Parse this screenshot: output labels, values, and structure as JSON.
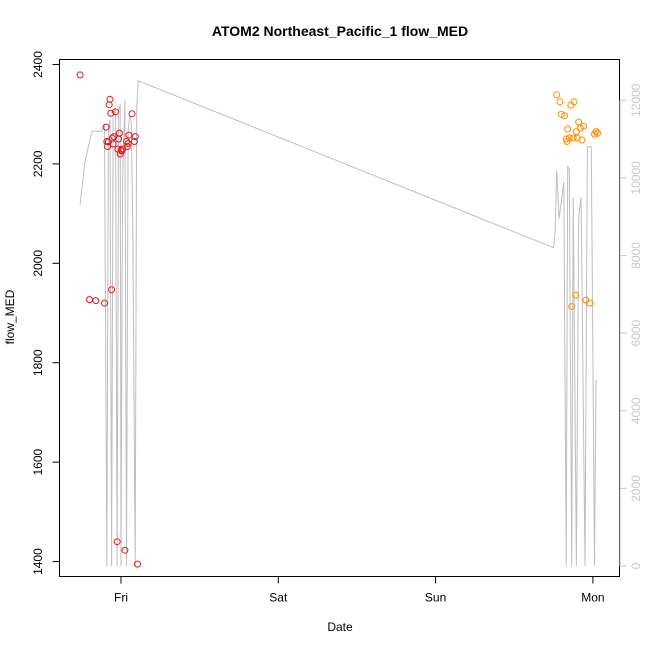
{
  "chart_data": {
    "type": "scatter",
    "title": "ATOM2 Northeast_Pacific_1 flow_MED",
    "xlabel": "Date",
    "ylabel": "flow_MED",
    "x_unit": "days",
    "xlim": [
      -0.3,
      3.08
    ],
    "ylim": [
      1370,
      2410
    ],
    "y2lim": [
      -270,
      13050
    ],
    "x_ticks": [
      {
        "value": 0,
        "label": "Fri"
      },
      {
        "value": 1,
        "label": "Sat"
      },
      {
        "value": 2,
        "label": "Sun"
      },
      {
        "value": 3,
        "label": "Mon"
      }
    ],
    "y_ticks": [
      1400,
      1600,
      1800,
      2000,
      2200,
      2400
    ],
    "y2_ticks": [
      0,
      2000,
      4000,
      6000,
      8000,
      10000,
      12000
    ],
    "grid": false,
    "colors": {
      "series_red": "#e41a1c",
      "series_orange": "#ff8c00",
      "right_series": "#bebebe",
      "axis": "#000000",
      "right_axis": "#c8c8c8"
    },
    "series": [
      {
        "color": "series_red",
        "points": [
          [
            -0.26,
            2379
          ],
          [
            -0.2,
            1927
          ],
          [
            -0.16,
            1925
          ],
          [
            -0.105,
            1920
          ],
          [
            -0.095,
            2274
          ],
          [
            -0.09,
            2245
          ],
          [
            -0.085,
            2235
          ],
          [
            -0.08,
            2244
          ],
          [
            -0.075,
            2319
          ],
          [
            -0.07,
            2330
          ],
          [
            -0.065,
            2302
          ],
          [
            -0.06,
            1947
          ],
          [
            -0.055,
            2252
          ],
          [
            -0.05,
            2240
          ],
          [
            -0.045,
            2255
          ],
          [
            -0.035,
            2305
          ],
          [
            -0.025,
            1440
          ],
          [
            -0.02,
            2230
          ],
          [
            -0.015,
            2250
          ],
          [
            -0.01,
            2262
          ],
          [
            -0.005,
            2220
          ],
          [
            0.0,
            2228
          ],
          [
            0.005,
            2226
          ],
          [
            0.01,
            2230
          ],
          [
            0.025,
            1423
          ],
          [
            0.035,
            2245
          ],
          [
            0.04,
            2235
          ],
          [
            0.045,
            2241
          ],
          [
            0.05,
            2258
          ],
          [
            0.07,
            2301
          ],
          [
            0.085,
            2245
          ],
          [
            0.09,
            2255
          ],
          [
            0.105,
            1395
          ]
        ]
      },
      {
        "color": "series_orange",
        "points": [
          [
            2.77,
            2339
          ],
          [
            2.79,
            2325
          ],
          [
            2.8,
            2300
          ],
          [
            2.82,
            2297
          ],
          [
            2.83,
            2250
          ],
          [
            2.835,
            2245
          ],
          [
            2.84,
            2270
          ],
          [
            2.85,
            2252
          ],
          [
            2.86,
            2318
          ],
          [
            2.865,
            1913
          ],
          [
            2.875,
            2252
          ],
          [
            2.88,
            2325
          ],
          [
            2.89,
            1936
          ],
          [
            2.895,
            2265
          ],
          [
            2.9,
            2252
          ],
          [
            2.91,
            2284
          ],
          [
            2.92,
            2272
          ],
          [
            2.93,
            2248
          ],
          [
            2.94,
            2276
          ],
          [
            2.955,
            1926
          ],
          [
            2.98,
            1920
          ],
          [
            3.01,
            2260
          ],
          [
            3.02,
            2265
          ],
          [
            3.03,
            2262
          ]
        ]
      }
    ],
    "right_series": {
      "color": "right_series",
      "points": [
        [
          -0.26,
          9300
        ],
        [
          -0.23,
          10400
        ],
        [
          -0.185,
          11200
        ],
        [
          -0.15,
          11200
        ],
        [
          -0.12,
          11200
        ],
        [
          -0.105,
          11400
        ],
        [
          -0.09,
          0
        ],
        [
          -0.08,
          11250
        ],
        [
          -0.07,
          11500
        ],
        [
          -0.06,
          0
        ],
        [
          -0.05,
          11600
        ],
        [
          -0.035,
          11800
        ],
        [
          -0.025,
          0
        ],
        [
          -0.015,
          11700
        ],
        [
          -0.005,
          11900
        ],
        [
          0.0,
          0
        ],
        [
          0.01,
          10000
        ],
        [
          0.025,
          12000
        ],
        [
          0.035,
          0
        ],
        [
          0.045,
          11200
        ],
        [
          0.055,
          11600
        ],
        [
          0.065,
          11500
        ],
        [
          0.075,
          8800
        ],
        [
          0.09,
          0
        ],
        [
          0.1,
          11800
        ],
        [
          0.11,
          12500
        ],
        [
          2.75,
          8200
        ],
        [
          2.76,
          8600
        ],
        [
          2.77,
          10200
        ],
        [
          2.785,
          8950
        ],
        [
          2.8,
          9400
        ],
        [
          2.815,
          9900
        ],
        [
          2.83,
          0
        ],
        [
          2.84,
          10300
        ],
        [
          2.85,
          10200
        ],
        [
          2.865,
          0
        ],
        [
          2.875,
          9500
        ],
        [
          2.895,
          0
        ],
        [
          2.91,
          9000
        ],
        [
          2.925,
          9500
        ],
        [
          2.95,
          0
        ],
        [
          2.965,
          10800
        ],
        [
          2.99,
          10800
        ],
        [
          3.01,
          0
        ],
        [
          3.02,
          4800
        ]
      ]
    }
  }
}
